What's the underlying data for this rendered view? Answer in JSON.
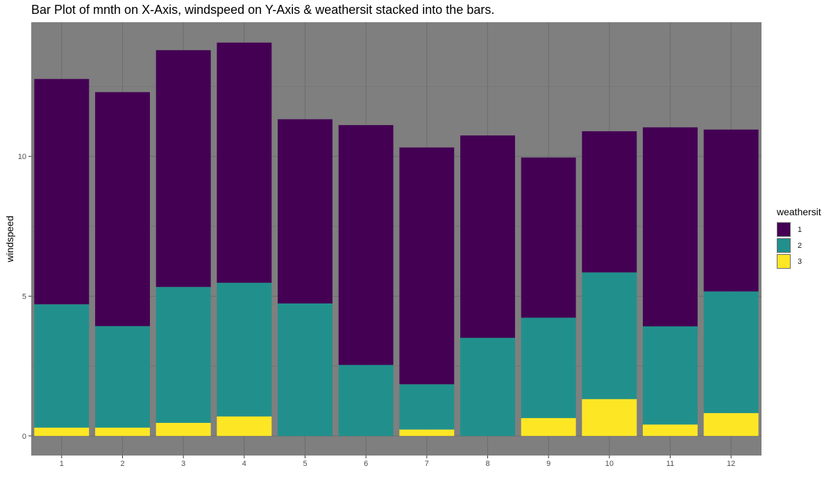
{
  "chart_data": {
    "type": "bar",
    "stacked": true,
    "title": "Bar Plot of mnth on X-Axis, windspeed on Y-Axis & weathersit stacked into the bars.",
    "xlabel": "",
    "ylabel": "windspeed",
    "categories": [
      "1",
      "2",
      "3",
      "4",
      "5",
      "6",
      "7",
      "8",
      "9",
      "10",
      "11",
      "12"
    ],
    "yticks": [
      "0",
      "5",
      "10"
    ],
    "ylim": [
      -0.7,
      14.8
    ],
    "series": [
      {
        "name": "3",
        "color": "#FDE725",
        "values": [
          0.3,
          0.3,
          0.47,
          0.7,
          0,
          0,
          0.23,
          0,
          0.64,
          1.32,
          0.41,
          0.82
        ]
      },
      {
        "name": "2",
        "color": "#21908C",
        "values": [
          4.41,
          3.63,
          4.86,
          4.78,
          4.74,
          2.54,
          1.62,
          3.51,
          3.59,
          4.53,
          3.51,
          4.35
        ]
      },
      {
        "name": "1",
        "color": "#440154",
        "values": [
          8.06,
          8.37,
          8.47,
          8.59,
          6.59,
          8.58,
          8.47,
          7.24,
          5.73,
          5.05,
          7.12,
          5.79
        ]
      }
    ],
    "grid": true,
    "panel_background": "#7F7F7F",
    "legend": {
      "title": "weathersit",
      "placement": "right",
      "entries": [
        {
          "label": "1",
          "color": "#440154"
        },
        {
          "label": "2",
          "color": "#21908C"
        },
        {
          "label": "3",
          "color": "#FDE725"
        }
      ]
    }
  }
}
